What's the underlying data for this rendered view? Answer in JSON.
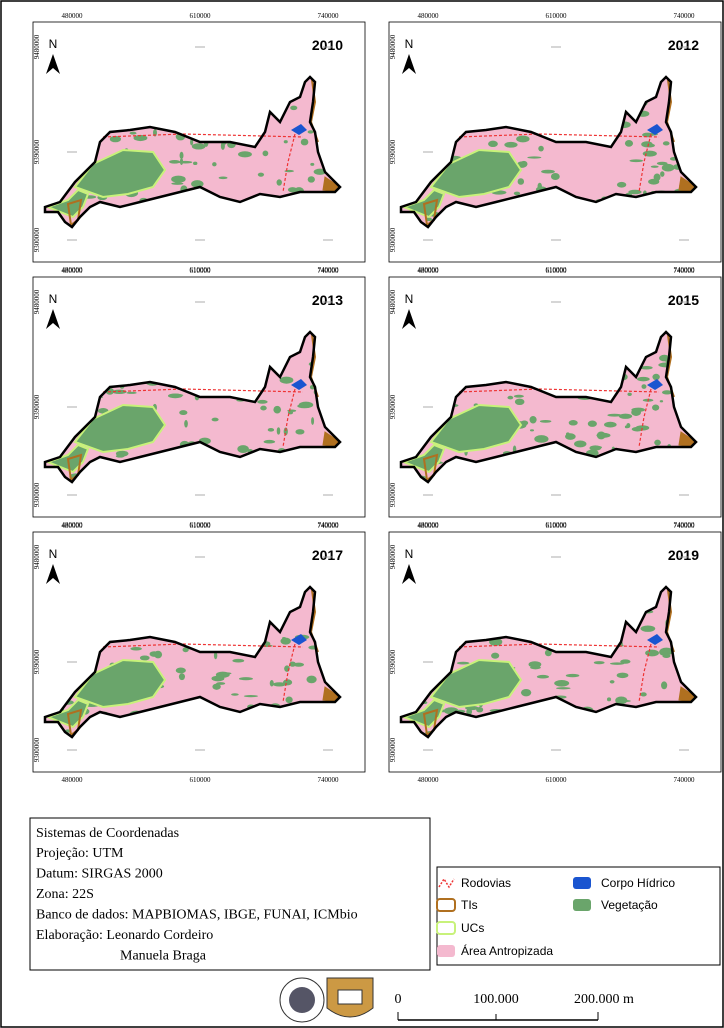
{
  "panels": [
    {
      "year": "2010"
    },
    {
      "year": "2012"
    },
    {
      "year": "2013"
    },
    {
      "year": "2015"
    },
    {
      "year": "2017"
    },
    {
      "year": "2019"
    }
  ],
  "x_ticks": [
    "480000",
    "610000",
    "740000"
  ],
  "y_ticks": [
    "9480000",
    "9390000",
    "9300000"
  ],
  "north": "N",
  "info": {
    "title": "Sistemas de Coordenadas",
    "lines": [
      "Projeção: UTM",
      "Datum: SIRGAS 2000",
      "Zona: 22S",
      "Banco de dados: MAPBIOMAS, IBGE, FUNAI, ICMbio",
      "Elaboração: Leonardo Cordeiro",
      "Manuela Braga"
    ]
  },
  "legend": [
    {
      "name": "Rodovias"
    },
    {
      "name": "TIs"
    },
    {
      "name": "UCs"
    },
    {
      "name": "Área Antropizada"
    },
    {
      "name": "Corpo Hídrico"
    },
    {
      "name": "Vegetação"
    }
  ],
  "scale": {
    "labels": [
      "0",
      "100.000",
      "200.000 m"
    ]
  }
}
